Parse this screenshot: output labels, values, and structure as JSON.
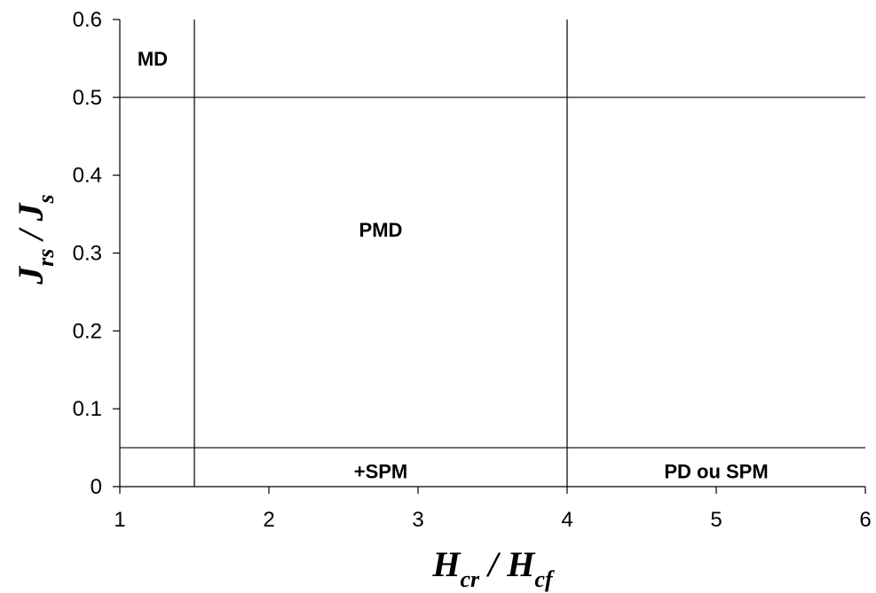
{
  "chart_data": {
    "type": "scatter",
    "xlabel": {
      "main": "H",
      "sub": "cr",
      "sep": " / ",
      "main2": "H",
      "sub2": "cf"
    },
    "ylabel": {
      "main": "J",
      "sub": "rs",
      "sep": " / ",
      "main2": "J",
      "sub2": "s"
    },
    "xlim": [
      1,
      6
    ],
    "ylim": [
      0,
      0.6
    ],
    "xticks": [
      "1",
      "2",
      "3",
      "4",
      "5",
      "6"
    ],
    "yticks": [
      "0",
      "0.1",
      "0.2",
      "0.3",
      "0.4",
      "0.5",
      "0.6"
    ],
    "boundaries": {
      "horizontal": [
        {
          "y": 0.5,
          "x_from": 1,
          "x_to": 6
        },
        {
          "y": 0.05,
          "x_from": 1,
          "x_to": 6
        }
      ],
      "vertical": [
        {
          "x": 1.5,
          "y_from": 0,
          "y_to": 0.6
        },
        {
          "x": 4,
          "y_from": 0,
          "y_to": 0.6
        }
      ]
    },
    "regions": [
      {
        "label": "MD",
        "x": 1.22,
        "y": 0.55
      },
      {
        "label": "PMD",
        "x": 2.75,
        "y": 0.33
      },
      {
        "label": "+SPM",
        "x": 2.75,
        "y": 0.02
      },
      {
        "label": "PD ou SPM",
        "x": 5.0,
        "y": 0.02
      }
    ],
    "grid": false,
    "legend": "none"
  }
}
